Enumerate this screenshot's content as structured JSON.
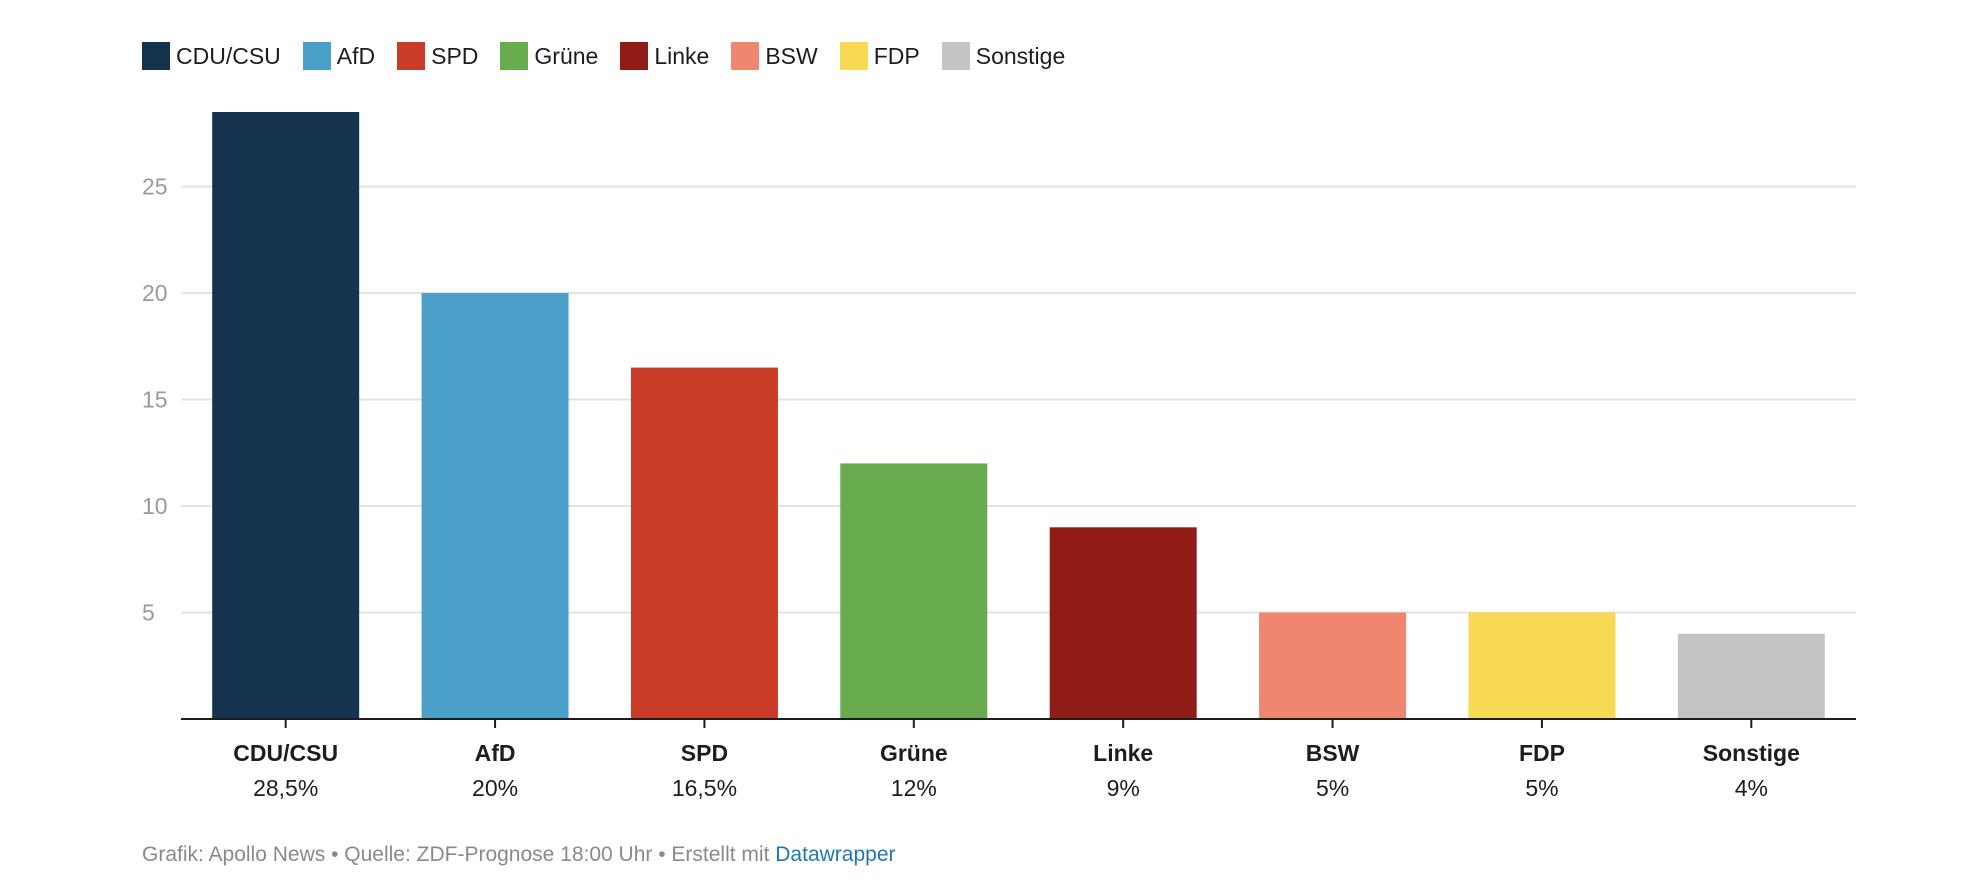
{
  "chart_data": {
    "type": "bar",
    "categories": [
      "CDU/CSU",
      "AfD",
      "SPD",
      "Grüne",
      "Linke",
      "BSW",
      "FDP",
      "Sonstige"
    ],
    "values": [
      28.5,
      20,
      16.5,
      12,
      9,
      5,
      5,
      4
    ],
    "value_labels": [
      "28,5%",
      "20%",
      "16,5%",
      "12%",
      "9%",
      "5%",
      "5%",
      "4%"
    ],
    "colors": [
      "#15324e",
      "#4ba0ca",
      "#c93d28",
      "#68ab4e",
      "#8f1d15",
      "#ef8670",
      "#f7d954",
      "#c4c4c4"
    ],
    "legend": [
      {
        "label": "CDU/CSU",
        "color": "#15324e"
      },
      {
        "label": "AfD",
        "color": "#4ba0ca"
      },
      {
        "label": "SPD",
        "color": "#c93d28"
      },
      {
        "label": "Grüne",
        "color": "#68ab4e"
      },
      {
        "label": "Linke",
        "color": "#8f1d15"
      },
      {
        "label": "BSW",
        "color": "#ef8670"
      },
      {
        "label": "FDP",
        "color": "#f7d954"
      },
      {
        "label": "Sonstige",
        "color": "#c4c4c4"
      }
    ],
    "legend_position": "top-left",
    "yticks": [
      5,
      10,
      15,
      20,
      25
    ],
    "ylim": [
      0,
      28.5
    ],
    "grid": true,
    "title": "",
    "xlabel": "",
    "ylabel": ""
  },
  "footer": {
    "prefix": "Grafik: Apollo News • Quelle: ZDF-Prognose 18:00 Uhr • Erstellt mit ",
    "link": "Datawrapper"
  }
}
